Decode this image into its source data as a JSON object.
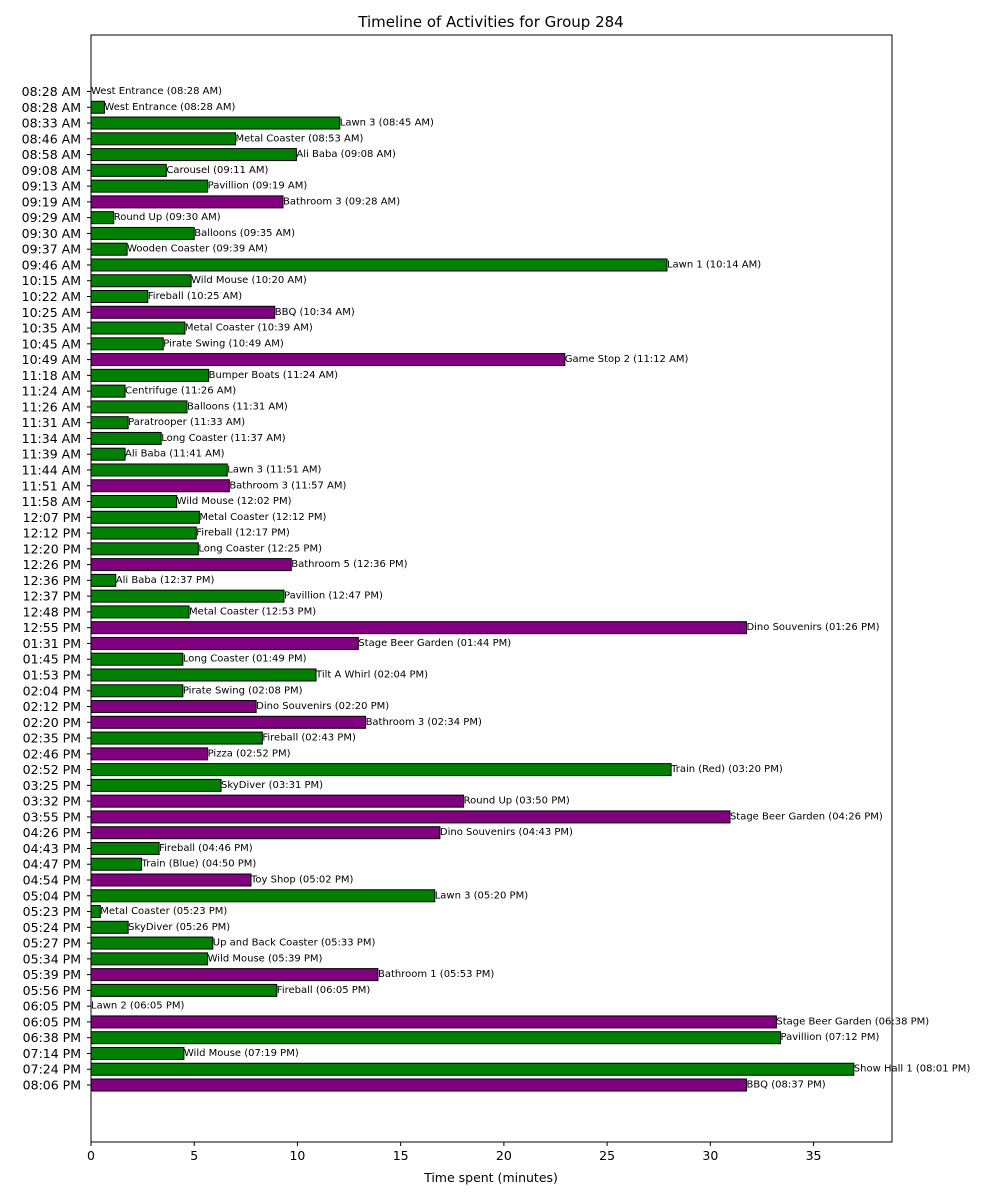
{
  "chart_data": {
    "type": "bar",
    "orientation": "horizontal",
    "title": "Timeline of Activities for Group 284",
    "xlabel": "Time spent (minutes)",
    "ylabel": "",
    "xlim": [
      0,
      38.8
    ],
    "xticks": [
      0,
      5,
      10,
      15,
      20,
      25,
      30,
      35
    ],
    "grid": false,
    "colors": {
      "green": "#008000",
      "purple": "#800080"
    },
    "bars": [
      {
        "start": "08:28 AM",
        "label": "West Entrance (08:28 AM)",
        "value": 0,
        "color": "green"
      },
      {
        "start": "08:28 AM",
        "label": "West Entrance (08:28 AM)",
        "value": 0.65,
        "color": "green"
      },
      {
        "start": "08:33 AM",
        "label": "Lawn 3 (08:45 AM)",
        "value": 12.05,
        "color": "green"
      },
      {
        "start": "08:46 AM",
        "label": "Metal Coaster (08:53 AM)",
        "value": 7.0,
        "color": "green"
      },
      {
        "start": "08:58 AM",
        "label": "Ali Baba (09:08 AM)",
        "value": 9.95,
        "color": "green"
      },
      {
        "start": "09:08 AM",
        "label": "Carousel (09:11 AM)",
        "value": 3.65,
        "color": "green"
      },
      {
        "start": "09:13 AM",
        "label": "Pavillion (09:19 AM)",
        "value": 5.65,
        "color": "green"
      },
      {
        "start": "09:19 AM",
        "label": "Bathroom 3 (09:28 AM)",
        "value": 9.3,
        "color": "purple"
      },
      {
        "start": "09:29 AM",
        "label": "Round Up (09:30 AM)",
        "value": 1.1,
        "color": "green"
      },
      {
        "start": "09:30 AM",
        "label": "Balloons (09:35 AM)",
        "value": 5.0,
        "color": "green"
      },
      {
        "start": "09:37 AM",
        "label": "Wooden Coaster (09:39 AM)",
        "value": 1.75,
        "color": "green"
      },
      {
        "start": "09:46 AM",
        "label": "Lawn 1 (10:14 AM)",
        "value": 27.9,
        "color": "green"
      },
      {
        "start": "10:15 AM",
        "label": "Wild Mouse (10:20 AM)",
        "value": 4.85,
        "color": "green"
      },
      {
        "start": "10:22 AM",
        "label": "Fireball (10:25 AM)",
        "value": 2.75,
        "color": "green"
      },
      {
        "start": "10:25 AM",
        "label": "BBQ (10:34 AM)",
        "value": 8.9,
        "color": "purple"
      },
      {
        "start": "10:35 AM",
        "label": "Metal Coaster (10:39 AM)",
        "value": 4.55,
        "color": "green"
      },
      {
        "start": "10:45 AM",
        "label": "Pirate Swing (10:49 AM)",
        "value": 3.5,
        "color": "green"
      },
      {
        "start": "10:49 AM",
        "label": "Game Stop 2 (11:12 AM)",
        "value": 22.95,
        "color": "purple"
      },
      {
        "start": "11:18 AM",
        "label": "Bumper Boats (11:24 AM)",
        "value": 5.7,
        "color": "green"
      },
      {
        "start": "11:24 AM",
        "label": "Centrifuge (11:26 AM)",
        "value": 1.65,
        "color": "green"
      },
      {
        "start": "11:26 AM",
        "label": "Balloons (11:31 AM)",
        "value": 4.65,
        "color": "green"
      },
      {
        "start": "11:31 AM",
        "label": "Paratrooper (11:33 AM)",
        "value": 1.8,
        "color": "green"
      },
      {
        "start": "11:34 AM",
        "label": "Long Coaster (11:37 AM)",
        "value": 3.4,
        "color": "green"
      },
      {
        "start": "11:39 AM",
        "label": "Ali Baba (11:41 AM)",
        "value": 1.65,
        "color": "green"
      },
      {
        "start": "11:44 AM",
        "label": "Lawn 3 (11:51 AM)",
        "value": 6.6,
        "color": "green"
      },
      {
        "start": "11:51 AM",
        "label": "Bathroom 3 (11:57 AM)",
        "value": 6.7,
        "color": "purple"
      },
      {
        "start": "11:58 AM",
        "label": "Wild Mouse (12:02 PM)",
        "value": 4.15,
        "color": "green"
      },
      {
        "start": "12:07 PM",
        "label": "Metal Coaster (12:12 PM)",
        "value": 5.25,
        "color": "green"
      },
      {
        "start": "12:12 PM",
        "label": "Fireball (12:17 PM)",
        "value": 5.1,
        "color": "green"
      },
      {
        "start": "12:20 PM",
        "label": "Long Coaster (12:25 PM)",
        "value": 5.2,
        "color": "green"
      },
      {
        "start": "12:26 PM",
        "label": "Bathroom 5 (12:36 PM)",
        "value": 9.7,
        "color": "purple"
      },
      {
        "start": "12:36 PM",
        "label": "Ali Baba (12:37 PM)",
        "value": 1.2,
        "color": "green"
      },
      {
        "start": "12:37 PM",
        "label": "Pavillion (12:47 PM)",
        "value": 9.35,
        "color": "green"
      },
      {
        "start": "12:48 PM",
        "label": "Metal Coaster (12:53 PM)",
        "value": 4.75,
        "color": "green"
      },
      {
        "start": "12:55 PM",
        "label": "Dino Souvenirs (01:26 PM)",
        "value": 31.75,
        "color": "purple"
      },
      {
        "start": "01:31 PM",
        "label": "Stage Beer Garden (01:44 PM)",
        "value": 12.95,
        "color": "purple"
      },
      {
        "start": "01:45 PM",
        "label": "Long Coaster (01:49 PM)",
        "value": 4.45,
        "color": "green"
      },
      {
        "start": "01:53 PM",
        "label": "Tilt A Whirl (02:04 PM)",
        "value": 10.9,
        "color": "green"
      },
      {
        "start": "02:04 PM",
        "label": "Pirate Swing (02:08 PM)",
        "value": 4.45,
        "color": "green"
      },
      {
        "start": "02:12 PM",
        "label": "Dino Souvenirs (02:20 PM)",
        "value": 8.0,
        "color": "purple"
      },
      {
        "start": "02:20 PM",
        "label": "Bathroom 3 (02:34 PM)",
        "value": 13.3,
        "color": "purple"
      },
      {
        "start": "02:35 PM",
        "label": "Fireball (02:43 PM)",
        "value": 8.3,
        "color": "green"
      },
      {
        "start": "02:46 PM",
        "label": "Pizza (02:52 PM)",
        "value": 5.65,
        "color": "purple"
      },
      {
        "start": "02:52 PM",
        "label": "Train (Red) (03:20 PM)",
        "value": 28.1,
        "color": "green"
      },
      {
        "start": "03:25 PM",
        "label": "SkyDiver (03:31 PM)",
        "value": 6.3,
        "color": "green"
      },
      {
        "start": "03:32 PM",
        "label": "Round Up (03:50 PM)",
        "value": 18.05,
        "color": "purple"
      },
      {
        "start": "03:55 PM",
        "label": "Stage Beer Garden (04:26 PM)",
        "value": 30.95,
        "color": "purple"
      },
      {
        "start": "04:26 PM",
        "label": "Dino Souvenirs (04:43 PM)",
        "value": 16.9,
        "color": "purple"
      },
      {
        "start": "04:43 PM",
        "label": "Fireball (04:46 PM)",
        "value": 3.3,
        "color": "green"
      },
      {
        "start": "04:47 PM",
        "label": "Train (Blue) (04:50 PM)",
        "value": 2.45,
        "color": "green"
      },
      {
        "start": "04:54 PM",
        "label": "Toy Shop (05:02 PM)",
        "value": 7.75,
        "color": "purple"
      },
      {
        "start": "05:04 PM",
        "label": "Lawn 3 (05:20 PM)",
        "value": 16.65,
        "color": "green"
      },
      {
        "start": "05:23 PM",
        "label": "Metal Coaster (05:23 PM)",
        "value": 0.45,
        "color": "green"
      },
      {
        "start": "05:24 PM",
        "label": "SkyDiver (05:26 PM)",
        "value": 1.8,
        "color": "green"
      },
      {
        "start": "05:27 PM",
        "label": "Up and Back Coaster (05:33 PM)",
        "value": 5.9,
        "color": "green"
      },
      {
        "start": "05:34 PM",
        "label": "Wild Mouse (05:39 PM)",
        "value": 5.65,
        "color": "green"
      },
      {
        "start": "05:39 PM",
        "label": "Bathroom 1 (05:53 PM)",
        "value": 13.9,
        "color": "purple"
      },
      {
        "start": "05:56 PM",
        "label": "Fireball (06:05 PM)",
        "value": 9.0,
        "color": "green"
      },
      {
        "start": "06:05 PM",
        "label": "Lawn 2 (06:05 PM)",
        "value": 0,
        "color": "green"
      },
      {
        "start": "06:05 PM",
        "label": "Stage Beer Garden (06:38 PM)",
        "value": 33.2,
        "color": "purple"
      },
      {
        "start": "06:38 PM",
        "label": "Pavillion (07:12 PM)",
        "value": 33.4,
        "color": "green"
      },
      {
        "start": "07:14 PM",
        "label": "Wild Mouse (07:19 PM)",
        "value": 4.5,
        "color": "green"
      },
      {
        "start": "07:24 PM",
        "label": "Show Hall 1 (08:01 PM)",
        "value": 36.95,
        "color": "green"
      },
      {
        "start": "08:06 PM",
        "label": "BBQ (08:37 PM)",
        "value": 31.75,
        "color": "purple"
      }
    ]
  }
}
